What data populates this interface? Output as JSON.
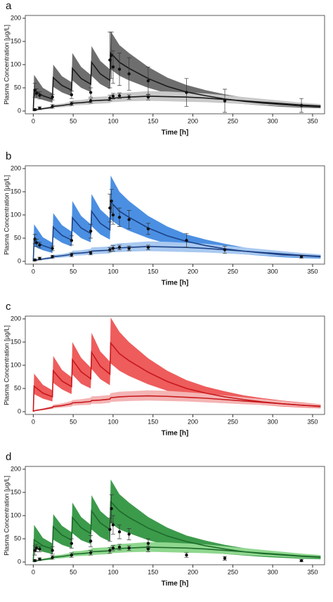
{
  "chart_data": [
    {
      "type": "line",
      "panel_label": "a",
      "xlabel": "Time [h]",
      "ylabel": "Plasma Concentration [µg/L]",
      "xlim": [
        -10,
        365
      ],
      "ylim": [
        -6,
        206
      ],
      "xticks": [
        0,
        50,
        100,
        150,
        200,
        250,
        300,
        350
      ],
      "yticks": [
        0,
        50,
        100,
        150,
        200
      ],
      "x": [
        0,
        1,
        12,
        24,
        25,
        36,
        48,
        49,
        60,
        72,
        73,
        84,
        96,
        97,
        108,
        120,
        144,
        168,
        192,
        216,
        240,
        264,
        288,
        312,
        336,
        360
      ],
      "series": [
        {
          "color": "#1a1a1a",
          "band_color": "#6e6e6e",
          "values": [
            0,
            45,
            33,
            26,
            72,
            55,
            45,
            92,
            70,
            58,
            105,
            80,
            66,
            125,
            105,
            92,
            70,
            53,
            41,
            33,
            26,
            21,
            17,
            14,
            11,
            9
          ],
          "lower": [
            0,
            32,
            24,
            18,
            52,
            40,
            32,
            66,
            50,
            41,
            76,
            58,
            47,
            90,
            76,
            66,
            50,
            38,
            29,
            23,
            18,
            15,
            12,
            9,
            7,
            6
          ],
          "upper": [
            0,
            78,
            50,
            38,
            100,
            75,
            62,
            125,
            95,
            78,
            140,
            108,
            90,
            172,
            142,
            125,
            95,
            72,
            56,
            45,
            36,
            29,
            23,
            19,
            15,
            13
          ],
          "obs_x": [
            2,
            4,
            8,
            24,
            48,
            72,
            96,
            98,
            100,
            108,
            120,
            144,
            192,
            240,
            336
          ],
          "obs_values": [
            45,
            38,
            34,
            30,
            35,
            40,
            110,
            120,
            95,
            90,
            80,
            65,
            40,
            22,
            12
          ],
          "obs_errors": [
            15,
            10,
            8,
            6,
            8,
            10,
            60,
            50,
            35,
            35,
            35,
            30,
            30,
            25,
            15
          ]
        },
        {
          "color": "#1a1a1a",
          "band_color": "#c9c9c9",
          "values": [
            0,
            2,
            5,
            8,
            10,
            12,
            15,
            17,
            18,
            20,
            22,
            23,
            24,
            27,
            29,
            30,
            32,
            31,
            30,
            28,
            25,
            22,
            19,
            16,
            13,
            11
          ],
          "lower": [
            0,
            1,
            3,
            5,
            7,
            8,
            10,
            12,
            13,
            14,
            15,
            16,
            17,
            19,
            20,
            21,
            22,
            21,
            20,
            19,
            17,
            15,
            13,
            11,
            9,
            8
          ],
          "upper": [
            0,
            3,
            7,
            11,
            14,
            16,
            20,
            23,
            24,
            27,
            30,
            31,
            32,
            36,
            39,
            40,
            43,
            42,
            40,
            38,
            34,
            30,
            26,
            22,
            18,
            15
          ],
          "obs_x": [
            2,
            8,
            24,
            48,
            72,
            96,
            100,
            108,
            120,
            144
          ],
          "obs_values": [
            3,
            6,
            10,
            16,
            22,
            28,
            32,
            33,
            30,
            30
          ],
          "obs_errors": [
            2,
            3,
            4,
            4,
            5,
            6,
            6,
            6,
            5,
            6
          ]
        }
      ]
    },
    {
      "type": "line",
      "panel_label": "b",
      "xlabel": "Time [h]",
      "ylabel": "Plasma Concentration [µg/L]",
      "xlim": [
        -10,
        365
      ],
      "ylim": [
        -6,
        206
      ],
      "xticks": [
        0,
        50,
        100,
        150,
        200,
        250,
        300,
        350
      ],
      "yticks": [
        0,
        50,
        100,
        150,
        200
      ],
      "x": [
        0,
        1,
        12,
        24,
        25,
        36,
        48,
        49,
        60,
        72,
        73,
        84,
        96,
        97,
        108,
        120,
        144,
        168,
        192,
        216,
        240,
        264,
        288,
        312,
        336,
        360
      ],
      "series": [
        {
          "color": "#1d4287",
          "band_color": "#4b8fe2",
          "values": [
            0,
            46,
            34,
            27,
            74,
            56,
            46,
            94,
            72,
            60,
            108,
            82,
            68,
            128,
            108,
            95,
            72,
            55,
            43,
            34,
            27,
            22,
            18,
            14,
            12,
            10
          ],
          "lower": [
            0,
            32,
            24,
            18,
            52,
            40,
            32,
            66,
            50,
            41,
            76,
            58,
            47,
            90,
            76,
            66,
            50,
            38,
            29,
            23,
            18,
            15,
            12,
            9,
            7,
            6
          ],
          "upper": [
            0,
            80,
            52,
            40,
            104,
            78,
            64,
            130,
            98,
            80,
            145,
            112,
            93,
            185,
            150,
            130,
            98,
            75,
            58,
            47,
            38,
            30,
            24,
            20,
            16,
            14
          ],
          "obs_x": [
            2,
            4,
            8,
            24,
            48,
            72,
            96,
            98,
            100,
            108,
            120,
            144,
            192,
            240,
            336
          ],
          "obs_values": [
            48,
            40,
            35,
            28,
            45,
            65,
            115,
            130,
            100,
            95,
            90,
            70,
            45,
            25,
            10
          ],
          "obs_errors": [
            10,
            8,
            6,
            5,
            10,
            15,
            30,
            25,
            20,
            20,
            20,
            12,
            15,
            8,
            3
          ]
        },
        {
          "color": "#1d4287",
          "band_color": "#a9c9f0",
          "values": [
            0,
            2,
            5,
            8,
            10,
            12,
            15,
            17,
            18,
            20,
            22,
            23,
            24,
            27,
            29,
            30,
            32,
            31,
            30,
            28,
            25,
            22,
            19,
            16,
            13,
            11
          ],
          "lower": [
            0,
            1,
            3,
            5,
            7,
            8,
            10,
            12,
            13,
            14,
            15,
            16,
            17,
            19,
            20,
            21,
            22,
            21,
            20,
            19,
            17,
            15,
            13,
            11,
            9,
            8
          ],
          "upper": [
            0,
            3,
            7,
            11,
            14,
            16,
            20,
            23,
            24,
            27,
            30,
            31,
            32,
            36,
            39,
            40,
            43,
            42,
            40,
            38,
            34,
            30,
            26,
            22,
            18,
            15
          ],
          "obs_x": [
            2,
            8,
            24,
            48,
            72,
            96,
            100,
            108,
            120,
            144
          ],
          "obs_values": [
            3,
            6,
            10,
            14,
            18,
            25,
            28,
            30,
            28,
            30
          ],
          "obs_errors": [
            2,
            3,
            3,
            4,
            4,
            5,
            6,
            5,
            5,
            5
          ]
        }
      ]
    },
    {
      "type": "line",
      "panel_label": "c",
      "xlabel": "Time [h]",
      "ylabel": "Plasma Concentration [µg/L]",
      "xlim": [
        -10,
        365
      ],
      "ylim": [
        -6,
        206
      ],
      "xticks": [
        0,
        50,
        100,
        150,
        200,
        250,
        300,
        350
      ],
      "yticks": [
        0,
        50,
        100,
        150,
        200
      ],
      "x": [
        0,
        1,
        12,
        24,
        25,
        36,
        48,
        49,
        60,
        72,
        73,
        84,
        96,
        97,
        108,
        120,
        144,
        168,
        192,
        216,
        240,
        264,
        288,
        312,
        336,
        360
      ],
      "series": [
        {
          "color": "#c8181b",
          "band_color": "#ee5c5c",
          "values": [
            0,
            55,
            40,
            32,
            88,
            66,
            54,
            112,
            86,
            71,
            128,
            98,
            81,
            148,
            125,
            110,
            85,
            65,
            50,
            40,
            32,
            26,
            21,
            17,
            14,
            11
          ],
          "lower": [
            0,
            38,
            28,
            22,
            62,
            48,
            38,
            80,
            60,
            50,
            92,
            70,
            57,
            104,
            88,
            77,
            59,
            45,
            35,
            28,
            22,
            18,
            14,
            11,
            9,
            7
          ],
          "upper": [
            0,
            82,
            58,
            46,
            120,
            90,
            74,
            150,
            116,
            95,
            170,
            130,
            108,
            203,
            172,
            150,
            115,
            88,
            68,
            54,
            44,
            35,
            29,
            24,
            20,
            16
          ],
          "obs_x": [],
          "obs_values": [],
          "obs_errors": []
        },
        {
          "color": "#c8181b",
          "band_color": "#f4b4b4",
          "values": [
            0,
            2,
            5,
            9,
            11,
            13,
            17,
            19,
            20,
            22,
            24,
            25,
            27,
            30,
            32,
            33,
            34,
            33,
            31,
            29,
            26,
            23,
            20,
            17,
            14,
            12
          ],
          "lower": [
            0,
            1,
            3,
            6,
            7,
            9,
            11,
            13,
            14,
            15,
            17,
            17,
            19,
            21,
            22,
            23,
            24,
            23,
            22,
            20,
            18,
            16,
            14,
            12,
            10,
            8
          ],
          "upper": [
            0,
            3,
            7,
            12,
            15,
            18,
            23,
            25,
            27,
            30,
            33,
            34,
            36,
            40,
            43,
            44,
            46,
            45,
            42,
            39,
            35,
            31,
            27,
            23,
            19,
            16
          ],
          "obs_x": [],
          "obs_values": [],
          "obs_errors": []
        }
      ]
    },
    {
      "type": "line",
      "panel_label": "d",
      "xlabel": "Time [h]",
      "ylabel": "Plasma Concentration [µg/L]",
      "xlim": [
        -10,
        365
      ],
      "ylim": [
        -6,
        206
      ],
      "xticks": [
        0,
        50,
        100,
        150,
        200,
        250,
        300,
        350
      ],
      "yticks": [
        0,
        50,
        100,
        150,
        200
      ],
      "x": [
        0,
        1,
        12,
        24,
        25,
        36,
        48,
        49,
        60,
        72,
        73,
        84,
        96,
        97,
        108,
        120,
        144,
        168,
        192,
        216,
        240,
        264,
        288,
        312,
        336,
        360
      ],
      "series": [
        {
          "color": "#1d6b2a",
          "band_color": "#3c9a4b",
          "values": [
            0,
            48,
            35,
            28,
            76,
            58,
            47,
            96,
            74,
            61,
            110,
            84,
            70,
            130,
            110,
            96,
            73,
            56,
            44,
            35,
            28,
            22,
            18,
            15,
            12,
            10
          ],
          "lower": [
            0,
            30,
            22,
            17,
            48,
            37,
            30,
            62,
            47,
            39,
            70,
            54,
            44,
            84,
            70,
            62,
            47,
            36,
            28,
            22,
            17,
            14,
            11,
            9,
            7,
            6
          ],
          "upper": [
            0,
            80,
            52,
            40,
            103,
            78,
            64,
            128,
            97,
            80,
            144,
            110,
            92,
            178,
            146,
            128,
            97,
            74,
            57,
            46,
            37,
            30,
            24,
            20,
            16,
            13
          ],
          "obs_x": [
            2,
            4,
            8,
            24,
            48,
            72,
            96,
            98,
            100,
            108,
            120,
            144,
            192,
            240,
            336
          ],
          "obs_values": [
            25,
            30,
            28,
            25,
            40,
            45,
            70,
            115,
            80,
            65,
            60,
            40,
            15,
            8,
            3
          ],
          "obs_errors": [
            10,
            8,
            6,
            8,
            10,
            12,
            25,
            30,
            20,
            15,
            12,
            10,
            5,
            4,
            2
          ]
        },
        {
          "color": "#1d6b2a",
          "band_color": "#8fd78f",
          "values": [
            0,
            2,
            5,
            8,
            10,
            12,
            15,
            17,
            18,
            20,
            22,
            23,
            24,
            27,
            29,
            30,
            32,
            31,
            30,
            28,
            25,
            22,
            19,
            16,
            13,
            11
          ],
          "lower": [
            0,
            1,
            3,
            5,
            7,
            8,
            10,
            12,
            13,
            14,
            15,
            16,
            17,
            19,
            20,
            21,
            22,
            21,
            20,
            19,
            17,
            15,
            13,
            11,
            9,
            8
          ],
          "upper": [
            0,
            3,
            7,
            11,
            14,
            16,
            20,
            23,
            24,
            27,
            30,
            31,
            32,
            36,
            39,
            40,
            43,
            42,
            40,
            38,
            34,
            30,
            26,
            22,
            18,
            15
          ],
          "obs_x": [
            2,
            8,
            24,
            48,
            72,
            96,
            100,
            108,
            120,
            144
          ],
          "obs_values": [
            3,
            6,
            10,
            15,
            20,
            25,
            30,
            32,
            30,
            28
          ],
          "obs_errors": [
            2,
            3,
            4,
            5,
            5,
            6,
            6,
            6,
            5,
            6
          ]
        }
      ]
    }
  ]
}
